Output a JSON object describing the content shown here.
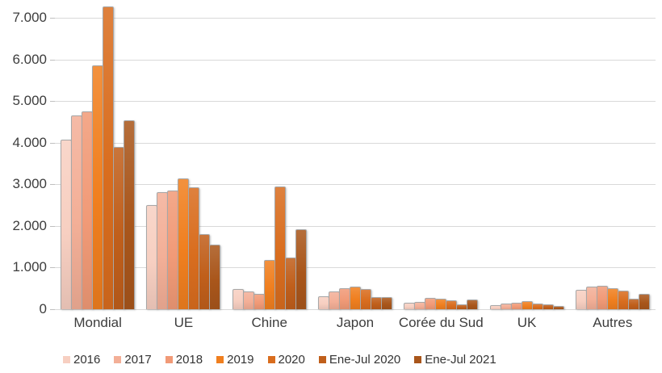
{
  "chart_data": {
    "type": "bar",
    "title": "",
    "xlabel": "",
    "ylabel": "",
    "categories": [
      "Mondial",
      "UE",
      "Chine",
      "Japon",
      "Corée du Sud",
      "UK",
      "Autres"
    ],
    "series": [
      {
        "name": "2016",
        "color": "#f7cfc1",
        "values": [
          4050,
          2480,
          460,
          300,
          130,
          80,
          440
        ]
      },
      {
        "name": "2017",
        "color": "#f3af97",
        "values": [
          4640,
          2790,
          400,
          410,
          160,
          110,
          520
        ]
      },
      {
        "name": "2018",
        "color": "#f19a77",
        "values": [
          4730,
          2830,
          350,
          480,
          260,
          140,
          550
        ]
      },
      {
        "name": "2019",
        "color": "#f07f1f",
        "values": [
          5840,
          3130,
          1170,
          520,
          230,
          180,
          480
        ]
      },
      {
        "name": "2020",
        "color": "#d96d1e",
        "values": [
          7250,
          2900,
          2920,
          470,
          200,
          120,
          430
        ]
      },
      {
        "name": "Ene-Jul 2020",
        "color": "#c05f1b",
        "values": [
          3870,
          1780,
          1230,
          280,
          90,
          90,
          230
        ]
      },
      {
        "name": "Ene-Jul 2021",
        "color": "#a9561b",
        "values": [
          4520,
          1540,
          1900,
          270,
          210,
          60,
          350
        ]
      }
    ],
    "ylim": [
      0,
      7270
    ],
    "yticks": [
      0,
      1000,
      2000,
      3000,
      4000,
      5000,
      6000,
      7000
    ],
    "ytick_labels": [
      "0",
      "1.000",
      "2.000",
      "3.000",
      "4.000",
      "5.000",
      "6.000",
      "7.000"
    ],
    "grid": "horizontal",
    "gridline_color": "#d9d9d9",
    "legend_position": "bottom"
  }
}
